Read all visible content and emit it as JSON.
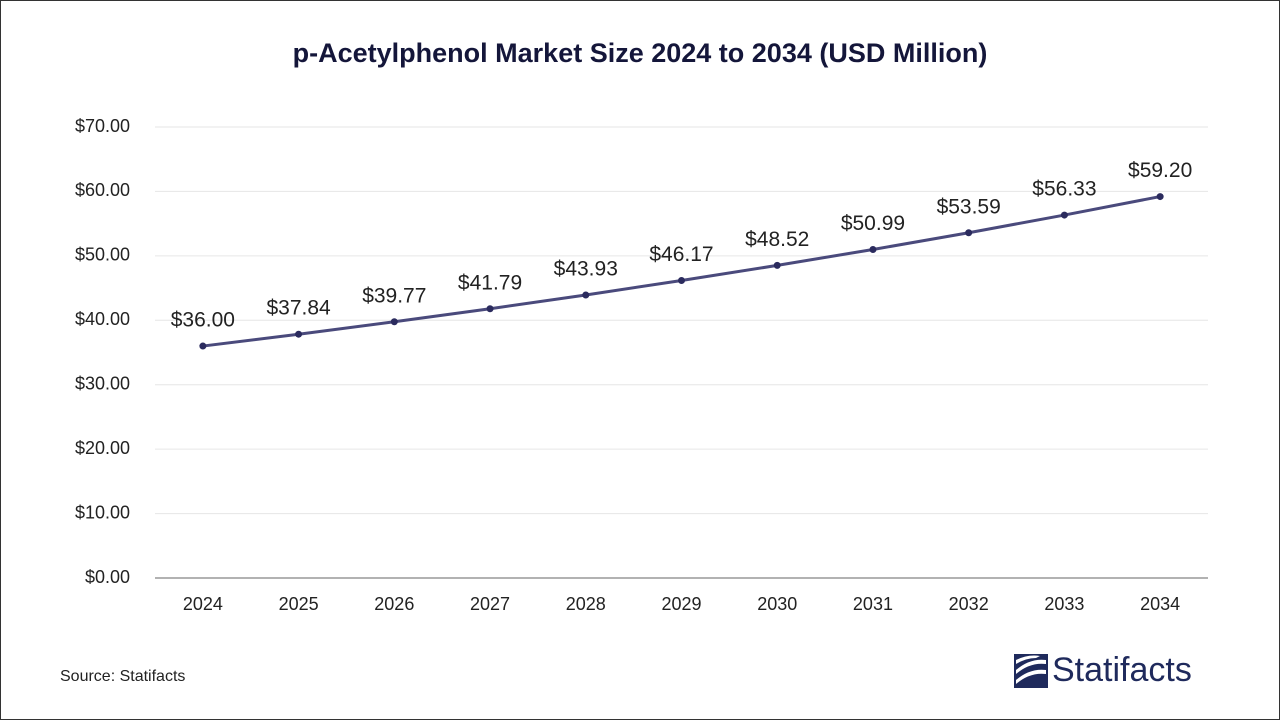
{
  "chart_data": {
    "type": "line",
    "title": "p-Acetylphenol Market Size 2024 to 2034 (USD Million)",
    "categories": [
      "2024",
      "2025",
      "2026",
      "2027",
      "2028",
      "2029",
      "2030",
      "2031",
      "2032",
      "2033",
      "2034"
    ],
    "series": [
      {
        "name": "Market Size",
        "color": "#4a4a7c",
        "values": [
          36.0,
          37.84,
          39.77,
          41.79,
          43.93,
          46.17,
          48.52,
          50.99,
          53.59,
          56.33,
          59.2
        ],
        "value_labels": [
          "$36.00",
          "$37.84",
          "$39.77",
          "$41.79",
          "$43.93",
          "$46.17",
          "$48.52",
          "$50.99",
          "$53.59",
          "$56.33",
          "$59.20"
        ]
      }
    ],
    "ylim": [
      0,
      70
    ],
    "yticks": [
      {
        "value": 0,
        "label": "$0.00"
      },
      {
        "value": 10,
        "label": "$10.00"
      },
      {
        "value": 20,
        "label": "$20.00"
      },
      {
        "value": 30,
        "label": "$30.00"
      },
      {
        "value": 40,
        "label": "$40.00"
      },
      {
        "value": 50,
        "label": "$50.00"
      },
      {
        "value": 60,
        "label": "$60.00"
      },
      {
        "value": 70,
        "label": "$70.00"
      }
    ],
    "grid": true,
    "source": "Source: Statifacts",
    "brand": "Statifacts"
  }
}
